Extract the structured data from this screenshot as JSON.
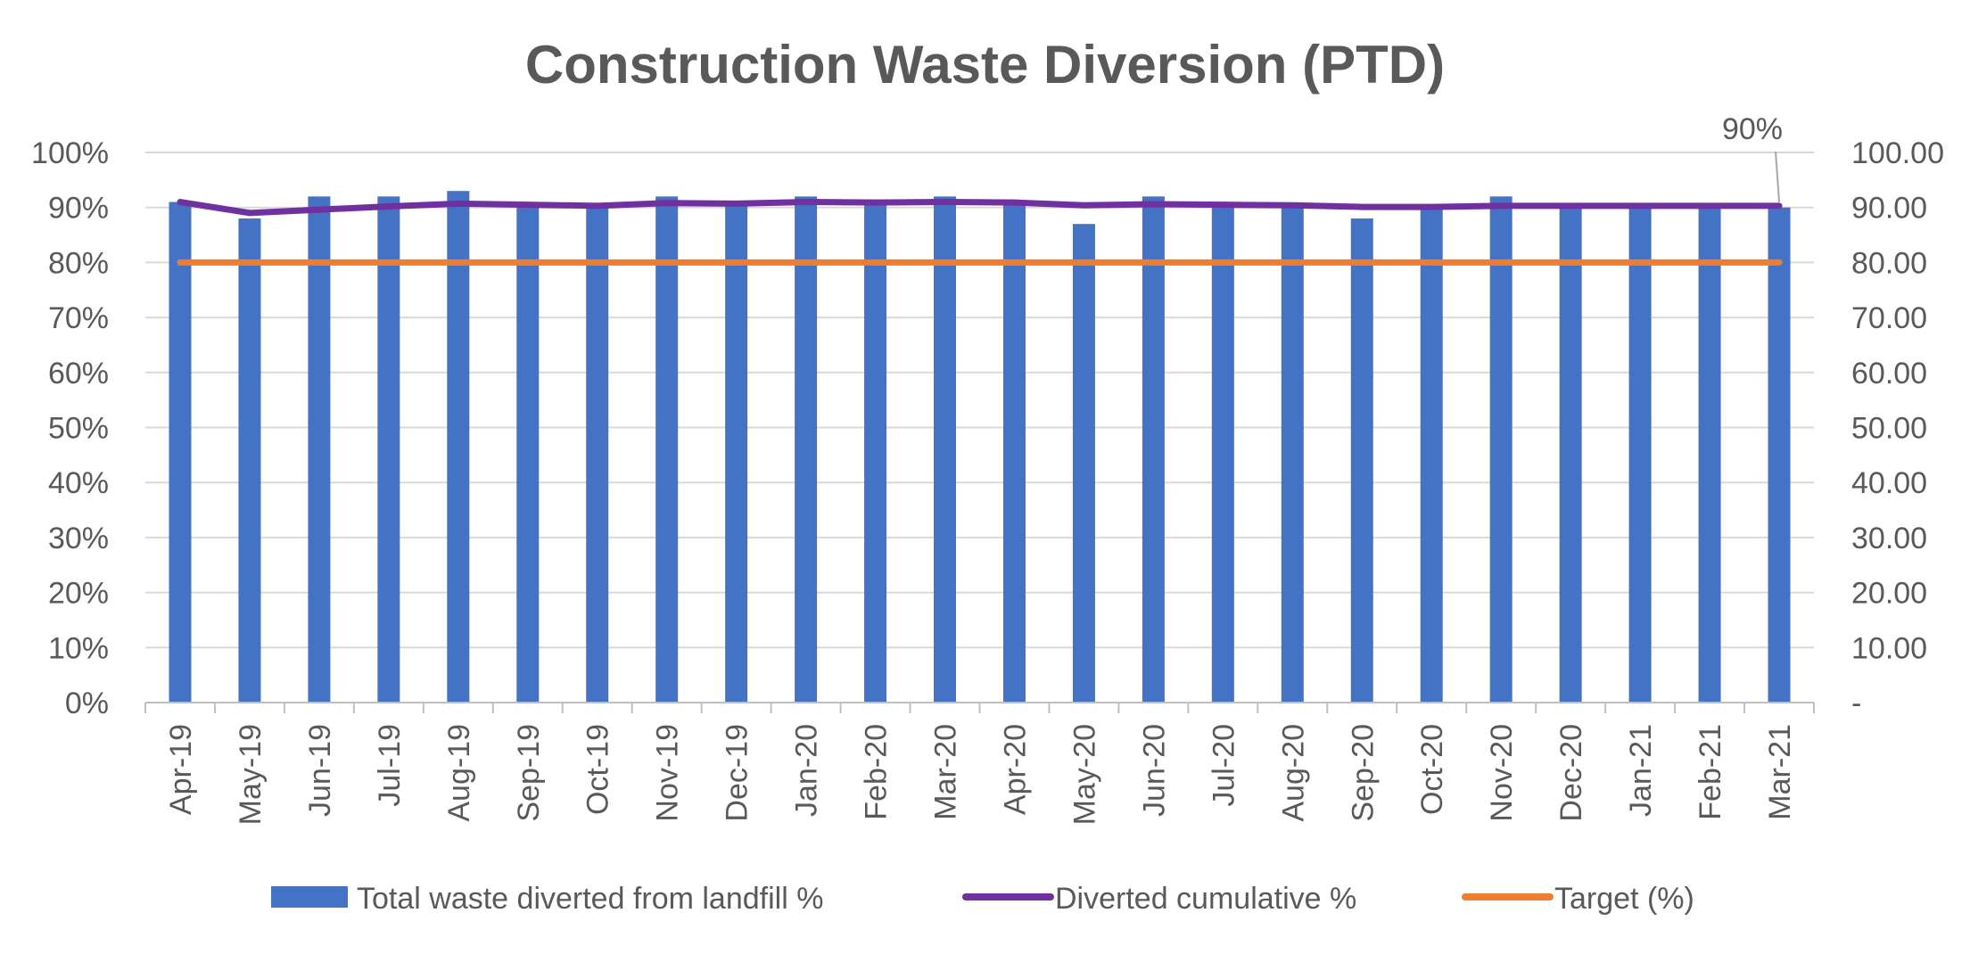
{
  "chart_data": {
    "type": "bar",
    "title": "Construction Waste Diversion (PTD)",
    "xlabel": "",
    "ylabel": "",
    "categories": [
      "Apr-19",
      "May-19",
      "Jun-19",
      "Jul-19",
      "Aug-19",
      "Sep-19",
      "Oct-19",
      "Nov-19",
      "Dec-19",
      "Jan-20",
      "Feb-20",
      "Mar-20",
      "Apr-20",
      "May-20",
      "Jun-20",
      "Jul-20",
      "Aug-20",
      "Sep-20",
      "Oct-20",
      "Nov-20",
      "Dec-20",
      "Jan-21",
      "Feb-21",
      "Mar-21"
    ],
    "series": [
      {
        "name": "Total waste diverted from landfill %",
        "type": "bar",
        "axis": "left",
        "color": "#4472C4",
        "values": [
          91,
          88,
          92,
          92,
          93,
          91,
          90,
          92,
          91,
          92,
          91,
          92,
          91,
          87,
          92,
          91,
          90,
          88,
          90,
          92,
          90,
          90,
          90,
          90
        ]
      },
      {
        "name": "Diverted cumulative %",
        "type": "line",
        "axis": "right",
        "color": "#7030A0",
        "values": [
          91,
          89,
          89.6,
          90.2,
          90.7,
          90.5,
          90.3,
          90.8,
          90.7,
          91,
          90.9,
          91,
          90.9,
          90.4,
          90.6,
          90.5,
          90.4,
          90.1,
          90.1,
          90.3,
          90.3,
          90.3,
          90.3,
          90.3
        ]
      },
      {
        "name": "Target (%)",
        "type": "line",
        "axis": "right",
        "color": "#ED7D31",
        "values": [
          80,
          80,
          80,
          80,
          80,
          80,
          80,
          80,
          80,
          80,
          80,
          80,
          80,
          80,
          80,
          80,
          80,
          80,
          80,
          80,
          80,
          80,
          80,
          80
        ]
      }
    ],
    "y_left": {
      "ylim": [
        0,
        100
      ],
      "ticks": [
        "0%",
        "10%",
        "20%",
        "30%",
        "40%",
        "50%",
        "60%",
        "70%",
        "80%",
        "90%",
        "100%"
      ]
    },
    "y_right": {
      "ylim": [
        0,
        100
      ],
      "ticks": [
        "-",
        "10.00",
        "20.00",
        "30.00",
        "40.00",
        "50.00",
        "60.00",
        "70.00",
        "80.00",
        "90.00",
        "100.00"
      ]
    },
    "grid": true,
    "legend_position": "bottom",
    "annotation": {
      "text": "90%",
      "series": "Diverted cumulative %",
      "category": "Mar-21"
    }
  }
}
